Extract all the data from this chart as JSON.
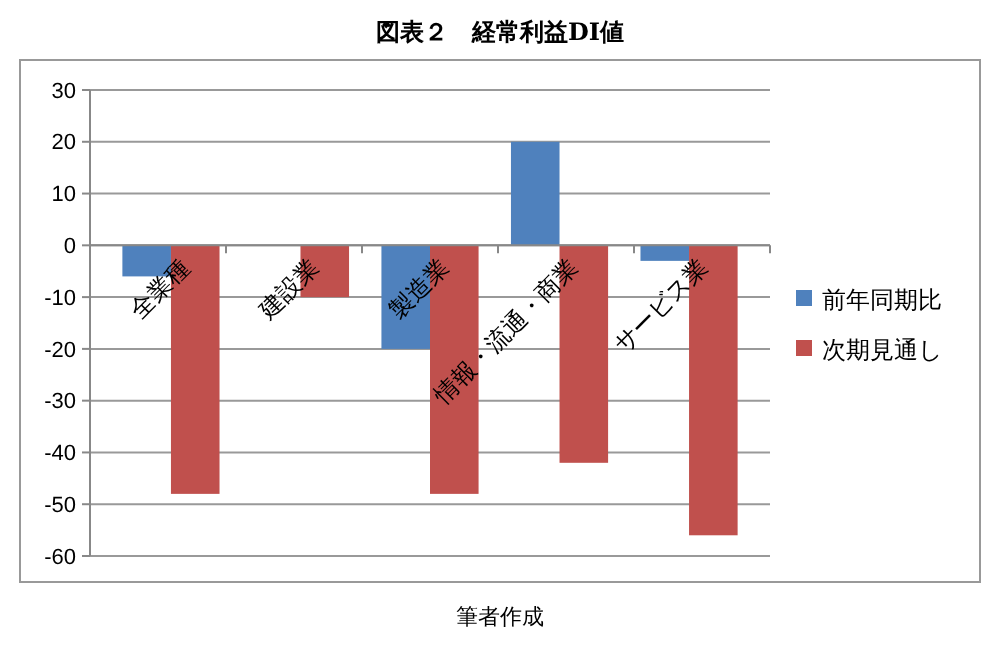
{
  "chart_data": {
    "type": "bar",
    "title": "図表２　経常利益DI値",
    "categories": [
      "全業種",
      "建設業",
      "製造業",
      "情報・流通・商業",
      "サービス業"
    ],
    "series": [
      {
        "name": "前年同期比",
        "color": "#4f81bd",
        "values": [
          -6,
          0,
          -20,
          20,
          -3
        ]
      },
      {
        "name": "次期見通し",
        "color": "#c0504d",
        "values": [
          -48,
          -10,
          -48,
          -42,
          -56
        ]
      }
    ],
    "ylim": [
      -60,
      30
    ],
    "yticks": [
      -60,
      -50,
      -40,
      -30,
      -20,
      -10,
      0,
      10,
      20,
      30
    ],
    "grid": "y",
    "legend": "right",
    "annotations": [
      "筆者作成"
    ]
  }
}
